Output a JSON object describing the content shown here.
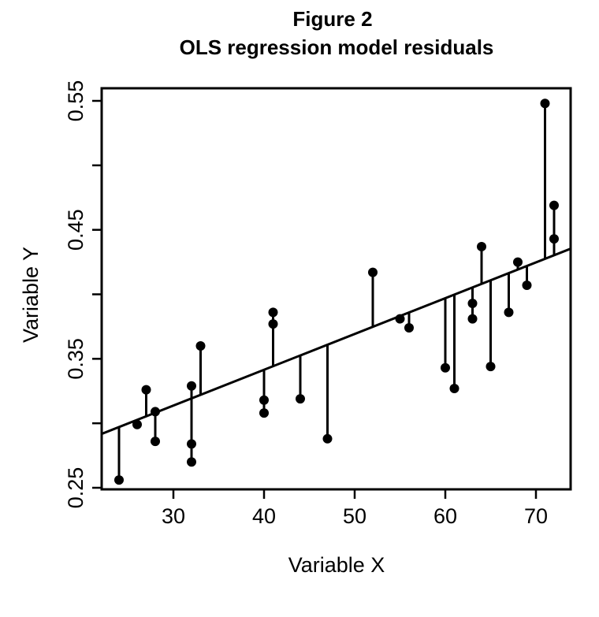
{
  "chart_data": {
    "type": "scatter",
    "title": "Figure 2",
    "subtitle": "OLS regression model residuals",
    "xlabel": "Variable X",
    "ylabel": "Variable Y",
    "xlim": [
      22,
      74
    ],
    "ylim": [
      0.25,
      0.56
    ],
    "x_ticks": [
      30,
      40,
      50,
      60,
      70
    ],
    "x_tick_labels": [
      "30",
      "40",
      "50",
      "60",
      "70"
    ],
    "y_ticks": [
      0.25,
      0.3,
      0.35,
      0.4,
      0.45,
      0.5,
      0.55
    ],
    "y_tick_labels": [
      "0.25",
      "",
      "0.35",
      "",
      "0.45",
      "",
      "0.55"
    ],
    "grid": false,
    "legend": "none",
    "regression_line": {
      "intercept": 0.2305,
      "slope": 0.002775
    },
    "points": [
      {
        "x": 24,
        "y": 0.256
      },
      {
        "x": 26,
        "y": 0.299
      },
      {
        "x": 27,
        "y": 0.326
      },
      {
        "x": 28,
        "y": 0.309
      },
      {
        "x": 28,
        "y": 0.286
      },
      {
        "x": 32,
        "y": 0.329
      },
      {
        "x": 32,
        "y": 0.284
      },
      {
        "x": 32,
        "y": 0.27
      },
      {
        "x": 33,
        "y": 0.36
      },
      {
        "x": 40,
        "y": 0.318
      },
      {
        "x": 40,
        "y": 0.308
      },
      {
        "x": 41,
        "y": 0.386
      },
      {
        "x": 41,
        "y": 0.377
      },
      {
        "x": 44,
        "y": 0.319
      },
      {
        "x": 47,
        "y": 0.288
      },
      {
        "x": 52,
        "y": 0.417
      },
      {
        "x": 55,
        "y": 0.381
      },
      {
        "x": 56,
        "y": 0.374
      },
      {
        "x": 60,
        "y": 0.343
      },
      {
        "x": 61,
        "y": 0.327
      },
      {
        "x": 63,
        "y": 0.393
      },
      {
        "x": 63,
        "y": 0.381
      },
      {
        "x": 64,
        "y": 0.437
      },
      {
        "x": 65,
        "y": 0.344
      },
      {
        "x": 67,
        "y": 0.386
      },
      {
        "x": 68,
        "y": 0.425
      },
      {
        "x": 69,
        "y": 0.407
      },
      {
        "x": 71,
        "y": 0.548
      },
      {
        "x": 72,
        "y": 0.469
      },
      {
        "x": 72,
        "y": 0.443
      }
    ]
  }
}
